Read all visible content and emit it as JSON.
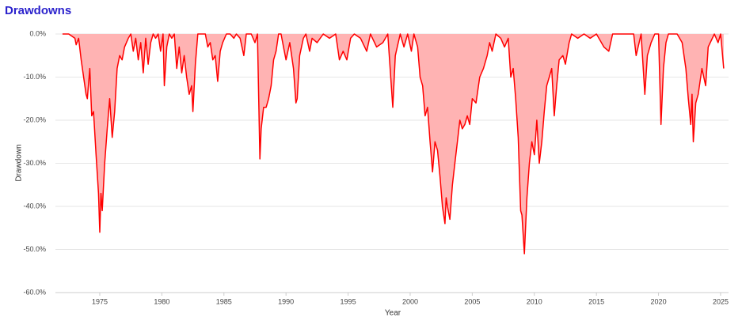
{
  "chart_data": {
    "type": "area",
    "title": "Drawdowns",
    "x_label": "Year",
    "y_label": "Drawdown",
    "line_color": "#ff0000",
    "fill_color": "#ffb3b3",
    "grid": true,
    "xlim": [
      1971.43,
      2025.64
    ],
    "xticks": [
      1975,
      1980,
      1985,
      1990,
      1995,
      2000,
      2005,
      2010,
      2015,
      2020,
      2025
    ],
    "ylim": [
      -60,
      0
    ],
    "yticks": [
      {
        "value": 0,
        "label": "0.0%"
      },
      {
        "value": -10,
        "label": "-10.0%"
      },
      {
        "value": -20,
        "label": "-20.0%"
      },
      {
        "value": -30,
        "label": "-30.0%"
      },
      {
        "value": -40,
        "label": "-40.0%"
      },
      {
        "value": -50,
        "label": "-50.0%"
      },
      {
        "value": -60,
        "label": "-60.0%"
      }
    ],
    "x": [
      1972.0,
      1972.5,
      1973.0,
      1973.1,
      1973.3,
      1973.5,
      1973.7,
      1973.9,
      1974.0,
      1974.2,
      1974.35,
      1974.5,
      1974.7,
      1974.9,
      1975.0,
      1975.1,
      1975.2,
      1975.4,
      1975.6,
      1975.8,
      1976.0,
      1976.2,
      1976.4,
      1976.6,
      1976.8,
      1977.0,
      1977.3,
      1977.5,
      1977.7,
      1977.9,
      1978.1,
      1978.3,
      1978.5,
      1978.7,
      1978.9,
      1979.1,
      1979.3,
      1979.5,
      1979.7,
      1979.9,
      1980.1,
      1980.2,
      1980.4,
      1980.6,
      1980.8,
      1981.0,
      1981.2,
      1981.4,
      1981.6,
      1981.8,
      1982.0,
      1982.2,
      1982.4,
      1982.5,
      1982.7,
      1982.9,
      1983.5,
      1983.7,
      1983.9,
      1984.1,
      1984.3,
      1984.5,
      1984.7,
      1984.9,
      1985.2,
      1985.5,
      1985.8,
      1986.0,
      1986.3,
      1986.6,
      1986.8,
      1987.2,
      1987.5,
      1987.7,
      1987.8,
      1987.9,
      1988.0,
      1988.2,
      1988.4,
      1988.6,
      1988.8,
      1989.0,
      1989.2,
      1989.4,
      1989.6,
      1989.8,
      1990.0,
      1990.3,
      1990.6,
      1990.8,
      1990.9,
      1991.1,
      1991.4,
      1991.6,
      1991.9,
      1992.1,
      1992.5,
      1993.0,
      1993.5,
      1994.0,
      1994.3,
      1994.6,
      1994.9,
      1995.2,
      1995.5,
      1996.0,
      1996.5,
      1996.8,
      1997.3,
      1997.8,
      1998.2,
      1998.6,
      1998.8,
      1999.2,
      1999.5,
      1999.8,
      2000.1,
      2000.3,
      2000.6,
      2000.8,
      2001.0,
      2001.2,
      2001.4,
      2001.6,
      2001.8,
      2002.0,
      2002.2,
      2002.4,
      2002.6,
      2002.8,
      2002.9,
      2003.0,
      2003.2,
      2003.4,
      2003.6,
      2003.8,
      2004.0,
      2004.2,
      2004.4,
      2004.6,
      2004.8,
      2005.0,
      2005.3,
      2005.6,
      2005.9,
      2006.2,
      2006.4,
      2006.6,
      2006.9,
      2007.3,
      2007.6,
      2007.9,
      2008.1,
      2008.3,
      2008.5,
      2008.7,
      2008.9,
      2009.0,
      2009.2,
      2009.4,
      2009.6,
      2009.8,
      2010.0,
      2010.2,
      2010.4,
      2010.6,
      2010.8,
      2011.0,
      2011.2,
      2011.4,
      2011.6,
      2011.8,
      2012.0,
      2012.3,
      2012.5,
      2012.8,
      2013.0,
      2013.5,
      2014.0,
      2014.5,
      2015.0,
      2015.6,
      2016.0,
      2016.3,
      2017.0,
      2018.0,
      2018.2,
      2018.6,
      2018.9,
      2019.1,
      2019.4,
      2019.7,
      2020.0,
      2020.2,
      2020.4,
      2020.6,
      2020.8,
      2021.5,
      2021.9,
      2022.2,
      2022.4,
      2022.6,
      2022.7,
      2022.8,
      2023.0,
      2023.2,
      2023.5,
      2023.8,
      2024.0,
      2024.5,
      2024.8,
      2025.0,
      2025.1,
      2025.25
    ],
    "values": [
      0,
      0,
      -1,
      -2.5,
      -1,
      -6,
      -10,
      -14,
      -15,
      -8,
      -19,
      -18,
      -28,
      -37,
      -46,
      -37,
      -41,
      -30,
      -22,
      -15,
      -24,
      -18,
      -8,
      -5,
      -6,
      -3,
      -1,
      0,
      -4,
      -1,
      -6,
      -2,
      -9,
      -1,
      -7,
      -2,
      0,
      -1,
      0,
      -4,
      0,
      -12,
      -3,
      0,
      -1,
      0,
      -8,
      -3,
      -9,
      -5,
      -10,
      -14,
      -12,
      -18,
      -7,
      0,
      0,
      -3,
      -2,
      -6,
      -5,
      -11,
      -4,
      -2,
      0,
      0,
      -1,
      0,
      -1,
      -5,
      0,
      0,
      -2,
      0,
      -15,
      -29,
      -22,
      -17,
      -17,
      -15,
      -12,
      -6,
      -4,
      0,
      0,
      -3,
      -6,
      -2,
      -8,
      -16,
      -15,
      -5,
      -1,
      0,
      -4,
      -1,
      -2,
      0,
      -1,
      0,
      -6,
      -4,
      -6,
      -1,
      0,
      -1,
      -4,
      0,
      -3,
      -2,
      0,
      -17,
      -5,
      0,
      -3,
      0,
      -4,
      0,
      -3,
      -10,
      -12,
      -19,
      -17,
      -25,
      -32,
      -25,
      -27,
      -33,
      -40,
      -44,
      -38,
      -40,
      -43,
      -35,
      -30,
      -25,
      -20,
      -22,
      -21,
      -19,
      -21,
      -15,
      -16,
      -10,
      -8,
      -5,
      -2,
      -4,
      0,
      -1,
      -3,
      -1,
      -10,
      -8,
      -15,
      -24,
      -41,
      -42,
      -51,
      -38,
      -30,
      -25,
      -28,
      -20,
      -30,
      -25,
      -18,
      -12,
      -10,
      -8,
      -19,
      -12,
      -6,
      -5,
      -7,
      -2,
      0,
      -1,
      0,
      -1,
      0,
      -3,
      -4,
      0,
      0,
      0,
      -5,
      0,
      -14,
      -5,
      -2,
      0,
      0,
      -21,
      -8,
      -2,
      0,
      0,
      -2,
      -8,
      -15,
      -21,
      -14,
      -25,
      -16,
      -14,
      -8,
      -12,
      -3,
      0,
      -2,
      0,
      -3,
      -8
    ]
  }
}
